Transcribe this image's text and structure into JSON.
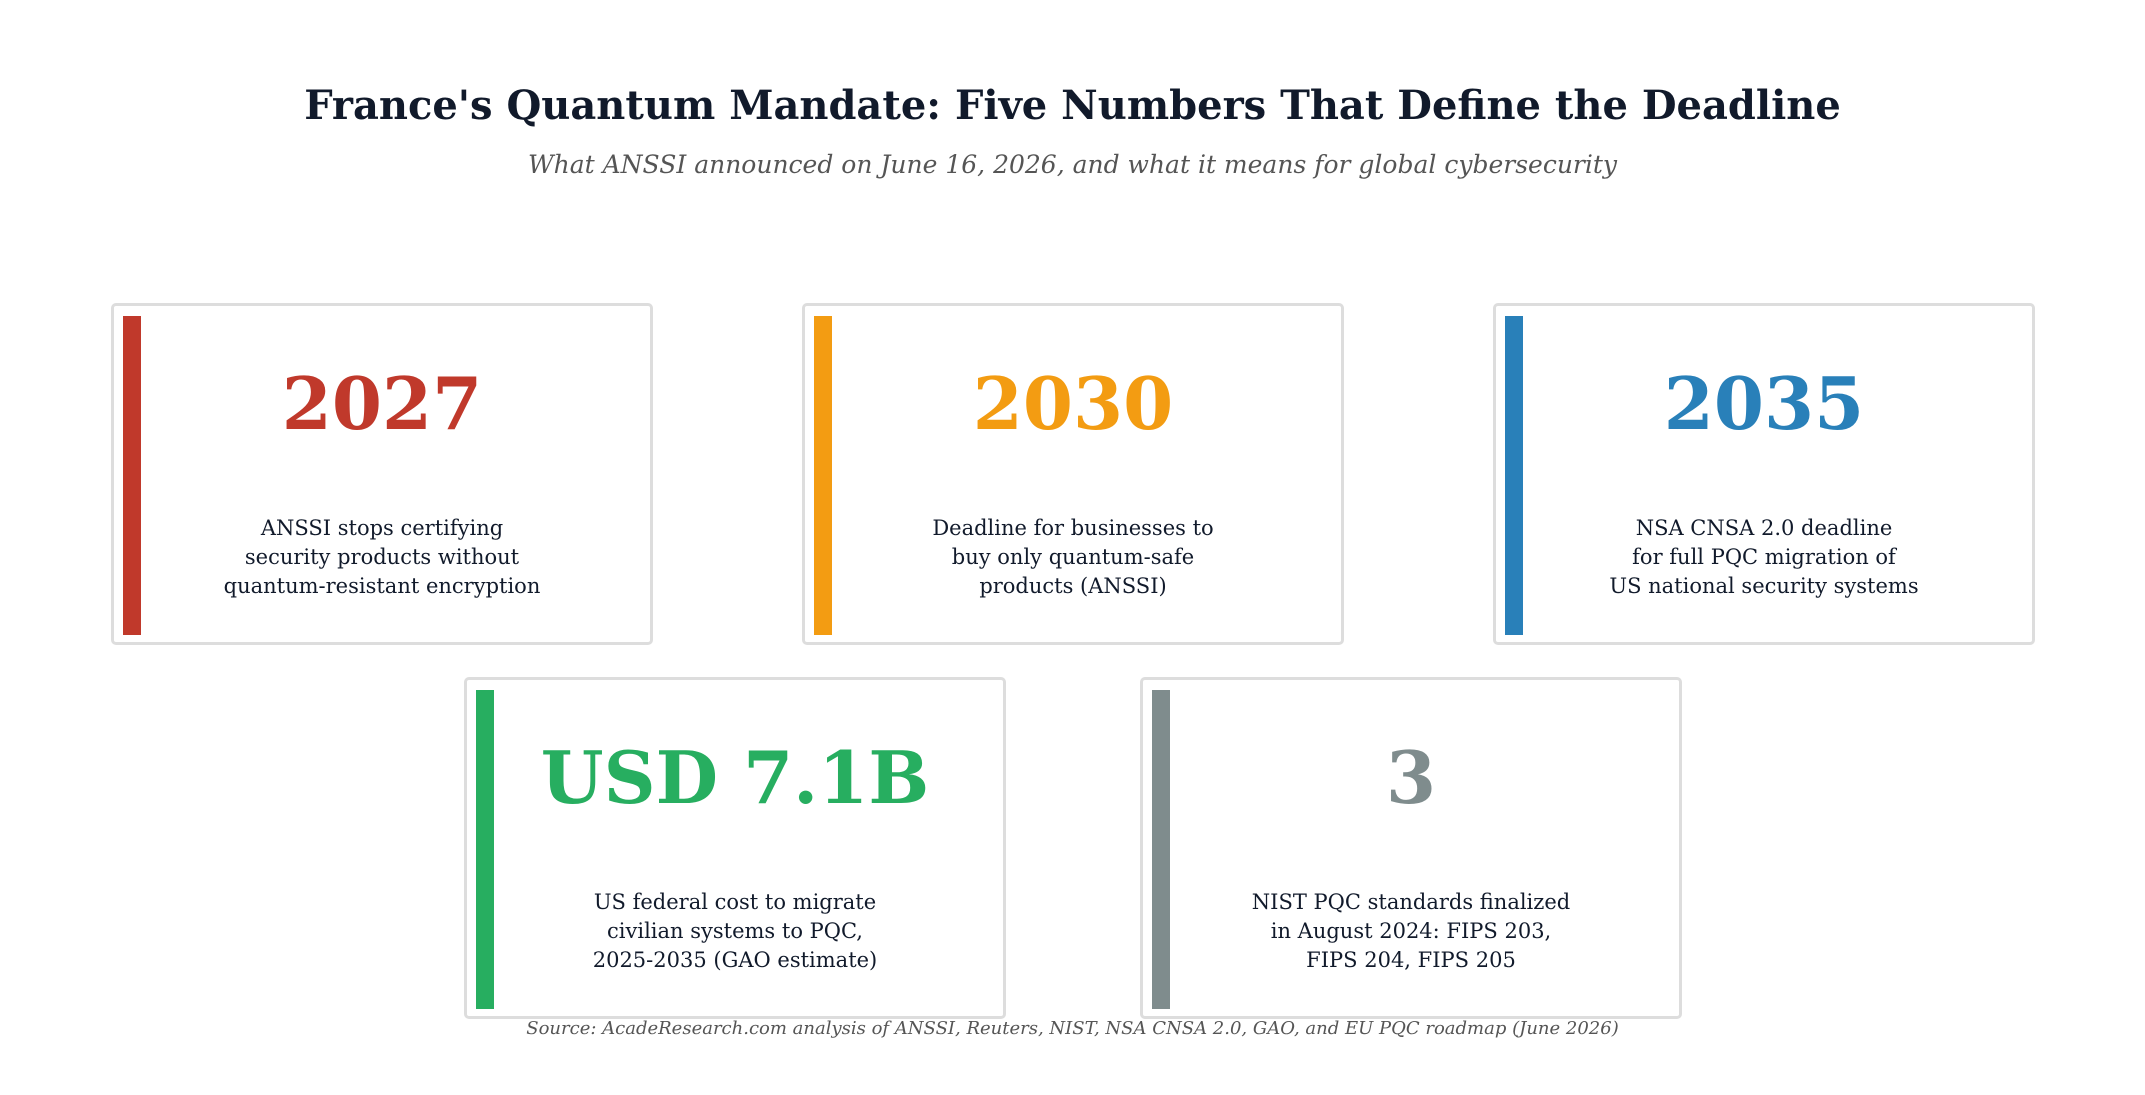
{
  "header": {
    "title": "France's Quantum Mandate: Five Numbers That Define the Deadline",
    "subtitle": "What ANSSI announced on June 16, 2026, and what it means for global cybersecurity"
  },
  "cards": [
    {
      "number": "2027",
      "color": "#c0392b",
      "lines": [
        "ANSSI stops certifying",
        "security products without",
        "quantum-resistant encryption"
      ]
    },
    {
      "number": "2030",
      "color": "#f39c12",
      "lines": [
        "Deadline for businesses to",
        "buy only quantum-safe",
        "products (ANSSI)"
      ]
    },
    {
      "number": "2035",
      "color": "#2980b9",
      "lines": [
        "NSA CNSA 2.0 deadline",
        "for full PQC migration of",
        "US national security systems"
      ]
    },
    {
      "number": "USD 7.1B",
      "color": "#27ae60",
      "lines": [
        "US federal cost to migrate",
        "civilian systems to PQC,",
        "2025-2035 (GAO estimate)"
      ]
    },
    {
      "number": "3",
      "color": "#7f8c8d",
      "lines": [
        "NIST PQC standards finalized",
        "in August 2024: FIPS 203,",
        "FIPS 204, FIPS 205"
      ]
    }
  ],
  "footer": {
    "source": "Source: AcadeResearch.com analysis of ANSSI, Reuters, NIST, NSA CNSA 2.0, GAO, and EU PQC roadmap (June 2026)"
  }
}
